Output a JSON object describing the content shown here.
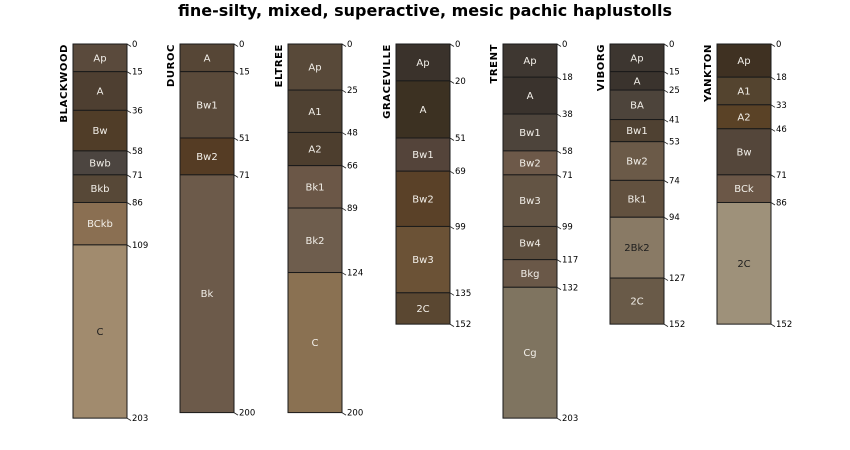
{
  "title": "fine-silty, mixed, superactive, mesic pachic haplustolls",
  "profiles": [
    {
      "name": "BLACKWOOD",
      "horizons": [
        {
          "name": "Ap",
          "top": 0,
          "bottom": 15,
          "color": "#5a4a3c"
        },
        {
          "name": "A",
          "top": 15,
          "bottom": 36,
          "color": "#4e3f31"
        },
        {
          "name": "Bw",
          "top": 36,
          "bottom": 58,
          "color": "#503d28"
        },
        {
          "name": "Bwb",
          "top": 58,
          "bottom": 71,
          "color": "#4c4540"
        },
        {
          "name": "Bkb",
          "top": 71,
          "bottom": 86,
          "color": "#574837"
        },
        {
          "name": "BCkb",
          "top": 86,
          "bottom": 109,
          "color": "#8a6f52"
        },
        {
          "name": "C",
          "top": 109,
          "bottom": 203,
          "color": "#a18b6e"
        }
      ],
      "depths": [
        0,
        15,
        36,
        58,
        71,
        86,
        109,
        203
      ]
    },
    {
      "name": "DUROC",
      "horizons": [
        {
          "name": "A",
          "top": 0,
          "bottom": 15,
          "color": "#564636"
        },
        {
          "name": "Bw1",
          "top": 15,
          "bottom": 51,
          "color": "#5a4a3a"
        },
        {
          "name": "Bw2",
          "top": 51,
          "bottom": 71,
          "color": "#553c24"
        },
        {
          "name": "Bk",
          "top": 71,
          "bottom": 200,
          "color": "#6c5a4a"
        }
      ],
      "depths": [
        0,
        15,
        51,
        71,
        200
      ]
    },
    {
      "name": "ELTREE",
      "horizons": [
        {
          "name": "Ap",
          "top": 0,
          "bottom": 25,
          "color": "#584939"
        },
        {
          "name": "A1",
          "top": 25,
          "bottom": 48,
          "color": "#4f4132"
        },
        {
          "name": "A2",
          "top": 48,
          "bottom": 66,
          "color": "#4d3e2e"
        },
        {
          "name": "Bk1",
          "top": 66,
          "bottom": 89,
          "color": "#6b5747"
        },
        {
          "name": "Bk2",
          "top": 89,
          "bottom": 124,
          "color": "#6e5d4d"
        },
        {
          "name": "C",
          "top": 124,
          "bottom": 200,
          "color": "#8a7152"
        }
      ],
      "depths": [
        0,
        25,
        48,
        66,
        89,
        124,
        200
      ]
    },
    {
      "name": "GRACEVILLE",
      "horizons": [
        {
          "name": "Ap",
          "top": 0,
          "bottom": 20,
          "color": "#3a322b"
        },
        {
          "name": "A",
          "top": 20,
          "bottom": 51,
          "color": "#3c3122"
        },
        {
          "name": "Bw1",
          "top": 51,
          "bottom": 69,
          "color": "#54443a"
        },
        {
          "name": "Bw2",
          "top": 69,
          "bottom": 99,
          "color": "#5a4128"
        },
        {
          "name": "Bw3",
          "top": 99,
          "bottom": 135,
          "color": "#6b5236"
        },
        {
          "name": "2C",
          "top": 135,
          "bottom": 152,
          "color": "#5a4731"
        }
      ],
      "depths": [
        0,
        20,
        51,
        69,
        99,
        135,
        152
      ]
    },
    {
      "name": "TRENT",
      "horizons": [
        {
          "name": "Ap",
          "top": 0,
          "bottom": 18,
          "color": "#3e3731"
        },
        {
          "name": "A",
          "top": 18,
          "bottom": 38,
          "color": "#3a332d"
        },
        {
          "name": "Bw1",
          "top": 38,
          "bottom": 58,
          "color": "#4d443b"
        },
        {
          "name": "Bw2",
          "top": 58,
          "bottom": 71,
          "color": "#6d5949"
        },
        {
          "name": "Bw3",
          "top": 71,
          "bottom": 99,
          "color": "#635444"
        },
        {
          "name": "Bw4",
          "top": 99,
          "bottom": 117,
          "color": "#5d4e3e"
        },
        {
          "name": "Bkg",
          "top": 117,
          "bottom": 132,
          "color": "#6a5848"
        },
        {
          "name": "Cg",
          "top": 132,
          "bottom": 203,
          "color": "#7f7460"
        }
      ],
      "depths": [
        0,
        18,
        38,
        58,
        71,
        99,
        117,
        132,
        203
      ]
    },
    {
      "name": "VIBORG",
      "horizons": [
        {
          "name": "Ap",
          "top": 0,
          "bottom": 15,
          "color": "#3d3630"
        },
        {
          "name": "A",
          "top": 15,
          "bottom": 25,
          "color": "#3a332d"
        },
        {
          "name": "BA",
          "top": 25,
          "bottom": 41,
          "color": "#4d443b"
        },
        {
          "name": "Bw1",
          "top": 41,
          "bottom": 53,
          "color": "#4f4132"
        },
        {
          "name": "Bw2",
          "top": 53,
          "bottom": 74,
          "color": "#6b5a48"
        },
        {
          "name": "Bk1",
          "top": 74,
          "bottom": 94,
          "color": "#62513f"
        },
        {
          "name": "2Bk2",
          "top": 94,
          "bottom": 127,
          "color": "#897a65"
        },
        {
          "name": "2C",
          "top": 127,
          "bottom": 152,
          "color": "#695a48"
        }
      ],
      "depths": [
        0,
        15,
        25,
        41,
        53,
        74,
        94,
        127,
        152
      ]
    },
    {
      "name": "YANKTON",
      "horizons": [
        {
          "name": "Ap",
          "top": 0,
          "bottom": 18,
          "color": "#3f3122"
        },
        {
          "name": "A1",
          "top": 18,
          "bottom": 33,
          "color": "#54442f"
        },
        {
          "name": "A2",
          "top": 33,
          "bottom": 46,
          "color": "#5a4226"
        },
        {
          "name": "Bw",
          "top": 46,
          "bottom": 71,
          "color": "#54463a"
        },
        {
          "name": "BCk",
          "top": 71,
          "bottom": 86,
          "color": "#6b5747"
        },
        {
          "name": "2C",
          "top": 86,
          "bottom": 152,
          "color": "#9e917a"
        }
      ],
      "depths": [
        0,
        18,
        33,
        46,
        71,
        86,
        152
      ]
    }
  ]
}
